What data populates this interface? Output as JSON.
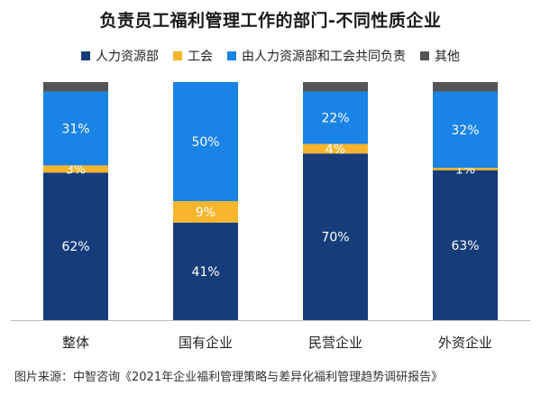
{
  "title": "负责员工福利管理工作的部门-不同性质企业",
  "source": "图片来源：中智咨询《2021年企业福利管理策略与差异化福利管理趋势调研报告》",
  "colors": {
    "hr": "#163d7a",
    "union": "#f6b52c",
    "shared": "#1a83e6",
    "other": "#545454",
    "baseline": "#bfbfbf"
  },
  "legend": [
    {
      "label": "人力资源部",
      "color": "#163d7a"
    },
    {
      "label": "工会",
      "color": "#f6b52c"
    },
    {
      "label": "由人力资源部和工会共同负责",
      "color": "#1a83e6"
    },
    {
      "label": "其他",
      "color": "#545454"
    }
  ],
  "chart_data": {
    "type": "bar",
    "stacked": true,
    "percent": true,
    "categories": [
      "整体",
      "国有企业",
      "民营企业",
      "外资企业"
    ],
    "ylim": [
      0,
      100
    ],
    "grid": false,
    "legend_position": "top",
    "series": [
      {
        "name": "人力资源部",
        "color": "#163d7a",
        "values": [
          62,
          41,
          70,
          63
        ],
        "labels": [
          "62%",
          "41%",
          "70%",
          "63%"
        ]
      },
      {
        "name": "工会",
        "color": "#f6b52c",
        "values": [
          3,
          9,
          4,
          1
        ],
        "labels": [
          "3%",
          "9%",
          "4%",
          "1%"
        ]
      },
      {
        "name": "由人力资源部和工会共同负责",
        "color": "#1a83e6",
        "values": [
          31,
          50,
          22,
          32
        ],
        "labels": [
          "31%",
          "50%",
          "22%",
          "32%"
        ]
      },
      {
        "name": "其他",
        "color": "#545454",
        "values": [
          4,
          0,
          4,
          4
        ],
        "labels": [
          "",
          "",
          "",
          ""
        ]
      }
    ]
  }
}
